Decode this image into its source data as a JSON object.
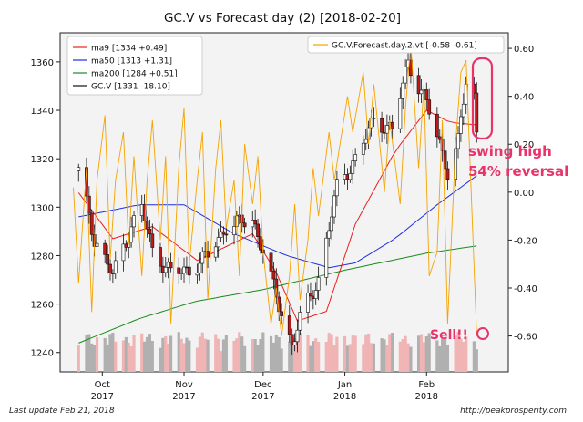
{
  "footer": {
    "left": "Last update Feb 21, 2018",
    "right": "http://peakprosperity.com"
  },
  "colors": {
    "ma9": "#e8201e",
    "ma50": "#1f2fe0",
    "ma200": "#1c8a1c",
    "price": "#111111",
    "forecast": "#f5a300",
    "annotation": "#e8336b",
    "up": "#ffffff",
    "down": "#c01818",
    "volume_up": "#f0b4b4",
    "volume_down": "#b0b0b0",
    "plot_bg": "#f3f3f3"
  },
  "chart_data": {
    "type": "candlestick",
    "title": "GC.V vs Forecast day (2)  [2018-02-20]",
    "left_axis": {
      "ylim": [
        1232,
        1372
      ],
      "ticks": [
        1240,
        1260,
        1280,
        1300,
        1320,
        1340,
        1360
      ]
    },
    "right_axis": {
      "ylim": [
        -0.75,
        0.665
      ],
      "ticks": [
        -0.6,
        -0.4,
        -0.2,
        0.0,
        0.2,
        0.4,
        0.6
      ],
      "tick_labels": [
        "-0.60",
        "-0.40",
        "-0.20",
        "0.00",
        "0.20",
        "0.40",
        "0.60"
      ]
    },
    "x_axis": {
      "range": [
        "2017-09-15",
        "2018-03-04"
      ],
      "ticks": [
        {
          "date": "2017-10-01",
          "label1": "Oct",
          "label2": "2017"
        },
        {
          "date": "2017-11-01",
          "label1": "Nov",
          "label2": "2017"
        },
        {
          "date": "2017-12-01",
          "label1": "Dec",
          "label2": "2017"
        },
        {
          "date": "2018-01-01",
          "label1": "Jan",
          "label2": "2018"
        },
        {
          "date": "2018-02-01",
          "label1": "Feb",
          "label2": "2018"
        }
      ]
    },
    "legend": [
      {
        "key": "ma9",
        "label": "ma9 [1334 +0.49]"
      },
      {
        "key": "ma50",
        "label": "ma50 [1313 +1.31]"
      },
      {
        "key": "ma200",
        "label": "ma200 [1284 +0.51]"
      },
      {
        "key": "price",
        "label": "GC.V [1331 -18.10]"
      }
    ],
    "forecast_legend": "GC.V.Forecast.day.2.vt [-0.58 -0.61]",
    "price_anchors": [
      [
        "2017-09-22",
        1315
      ],
      [
        "2017-09-28",
        1287
      ],
      [
        "2017-10-05",
        1272
      ],
      [
        "2017-10-12",
        1292
      ],
      [
        "2017-10-16",
        1300
      ],
      [
        "2017-10-20",
        1282
      ],
      [
        "2017-10-27",
        1273
      ],
      [
        "2017-11-03",
        1274
      ],
      [
        "2017-11-10",
        1280
      ],
      [
        "2017-11-17",
        1292
      ],
      [
        "2017-11-27",
        1295
      ],
      [
        "2017-12-01",
        1282
      ],
      [
        "2017-12-06",
        1263
      ],
      [
        "2017-12-12",
        1243
      ],
      [
        "2017-12-15",
        1254
      ],
      [
        "2017-12-22",
        1270
      ],
      [
        "2017-12-29",
        1308
      ],
      [
        "2018-01-05",
        1320
      ],
      [
        "2018-01-12",
        1336
      ],
      [
        "2018-01-19",
        1332
      ],
      [
        "2018-01-25",
        1360
      ],
      [
        "2018-02-01",
        1343
      ],
      [
        "2018-02-06",
        1326
      ],
      [
        "2018-02-09",
        1315
      ],
      [
        "2018-02-13",
        1327
      ],
      [
        "2018-02-16",
        1352
      ],
      [
        "2018-02-19",
        1346
      ],
      [
        "2018-02-20",
        1331
      ]
    ],
    "ma9_anchors": [
      [
        "2017-09-22",
        1306
      ],
      [
        "2017-10-05",
        1287
      ],
      [
        "2017-10-20",
        1292
      ],
      [
        "2017-11-06",
        1278
      ],
      [
        "2017-11-27",
        1289
      ],
      [
        "2017-12-06",
        1273
      ],
      [
        "2017-12-14",
        1253
      ],
      [
        "2017-12-25",
        1257
      ],
      [
        "2018-01-05",
        1293
      ],
      [
        "2018-01-20",
        1323
      ],
      [
        "2018-02-01",
        1340
      ],
      [
        "2018-02-10",
        1335
      ],
      [
        "2018-02-20",
        1334
      ]
    ],
    "ma50_anchors": [
      [
        "2017-09-22",
        1296
      ],
      [
        "2017-10-15",
        1301
      ],
      [
        "2017-11-01",
        1301
      ],
      [
        "2017-11-20",
        1289
      ],
      [
        "2017-12-10",
        1280
      ],
      [
        "2017-12-26",
        1275
      ],
      [
        "2018-01-05",
        1277
      ],
      [
        "2018-01-20",
        1287
      ],
      [
        "2018-02-05",
        1301
      ],
      [
        "2018-02-20",
        1313
      ]
    ],
    "ma200_anchors": [
      [
        "2017-09-20",
        1243
      ],
      [
        "2017-10-15",
        1254
      ],
      [
        "2017-11-05",
        1261
      ],
      [
        "2017-12-01",
        1266
      ],
      [
        "2018-01-01",
        1274
      ],
      [
        "2018-02-01",
        1281
      ],
      [
        "2018-02-20",
        1284
      ]
    ],
    "forecast_points": [
      [
        "2017-09-20",
        0.02
      ],
      [
        "2017-09-22",
        -0.38
      ],
      [
        "2017-09-25",
        0.1
      ],
      [
        "2017-09-27",
        -0.5
      ],
      [
        "2017-09-29",
        0.05
      ],
      [
        "2017-10-02",
        0.32
      ],
      [
        "2017-10-04",
        -0.28
      ],
      [
        "2017-10-06",
        0.05
      ],
      [
        "2017-10-09",
        0.25
      ],
      [
        "2017-10-11",
        -0.22
      ],
      [
        "2017-10-13",
        0.15
      ],
      [
        "2017-10-16",
        -0.35
      ],
      [
        "2017-10-18",
        0.05
      ],
      [
        "2017-10-20",
        0.3
      ],
      [
        "2017-10-23",
        -0.2
      ],
      [
        "2017-10-25",
        0.15
      ],
      [
        "2017-10-27",
        -0.55
      ],
      [
        "2017-10-30",
        0.1
      ],
      [
        "2017-11-01",
        0.35
      ],
      [
        "2017-11-03",
        -0.3
      ],
      [
        "2017-11-06",
        0.05
      ],
      [
        "2017-11-08",
        0.25
      ],
      [
        "2017-11-10",
        -0.45
      ],
      [
        "2017-11-13",
        0.1
      ],
      [
        "2017-11-15",
        0.3
      ],
      [
        "2017-11-17",
        -0.15
      ],
      [
        "2017-11-20",
        0.05
      ],
      [
        "2017-11-22",
        -0.35
      ],
      [
        "2017-11-24",
        0.2
      ],
      [
        "2017-11-27",
        -0.05
      ],
      [
        "2017-11-29",
        0.15
      ],
      [
        "2017-12-01",
        -0.25
      ],
      [
        "2017-12-04",
        -0.55
      ],
      [
        "2017-12-06",
        -0.4
      ],
      [
        "2017-12-08",
        -0.6
      ],
      [
        "2017-12-11",
        -0.35
      ],
      [
        "2017-12-13",
        -0.05
      ],
      [
        "2017-12-15",
        -0.45
      ],
      [
        "2017-12-18",
        -0.2
      ],
      [
        "2017-12-20",
        0.1
      ],
      [
        "2017-12-22",
        -0.1
      ],
      [
        "2017-12-26",
        0.25
      ],
      [
        "2017-12-28",
        0.05
      ],
      [
        "2018-01-02",
        0.4
      ],
      [
        "2018-01-04",
        0.25
      ],
      [
        "2018-01-08",
        0.5
      ],
      [
        "2018-01-10",
        0.2
      ],
      [
        "2018-01-12",
        0.45
      ],
      [
        "2018-01-16",
        0.0
      ],
      [
        "2018-01-18",
        0.3
      ],
      [
        "2018-01-22",
        -0.05
      ],
      [
        "2018-01-24",
        0.35
      ],
      [
        "2018-01-26",
        0.62
      ],
      [
        "2018-01-29",
        0.1
      ],
      [
        "2018-01-31",
        0.45
      ],
      [
        "2018-02-02",
        -0.35
      ],
      [
        "2018-02-05",
        -0.25
      ],
      [
        "2018-02-07",
        0.3
      ],
      [
        "2018-02-09",
        -0.55
      ],
      [
        "2018-02-12",
        0.2
      ],
      [
        "2018-02-14",
        0.5
      ],
      [
        "2018-02-16",
        0.55
      ],
      [
        "2018-02-20",
        -0.6
      ]
    ],
    "annotations": {
      "swing_line1": "swing high",
      "swing_line2": "54% reversal",
      "sell": "Sell!!"
    }
  }
}
